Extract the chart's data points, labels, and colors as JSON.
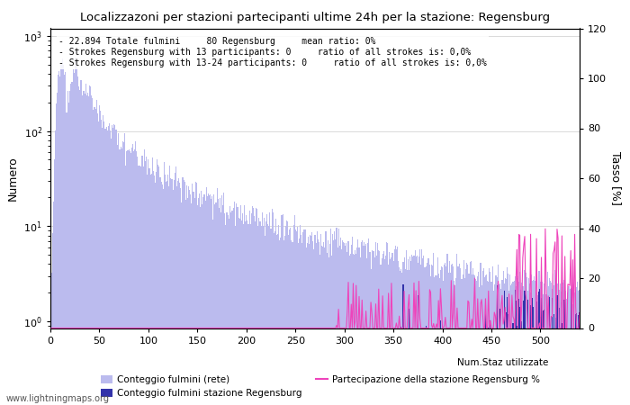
{
  "title": "Localizzazoni per stazioni partecipanti ultime 24h per la stazione: Regensburg",
  "ylabel_left": "Numero",
  "ylabel_right": "Tasso [%]",
  "annotation_line1": "- 22.894 Totale fulmini     80 Regensburg     mean ratio: 0%",
  "annotation_line2": "- Strokes Regensburg with 13 participants: 0     ratio of all strokes is: 0,0%",
  "annotation_line3": "- Strokes Regensburg with 13-24 participants: 0     ratio of all strokes is: 0,0%",
  "watermark": "www.lightningmaps.org",
  "legend1": "Conteggio fulmini (rete)",
  "legend2": "Conteggio fulmini stazione Regensburg",
  "legend3": "Partecipazione della stazione Regensburg %",
  "legend4": "Num.Staz utilizzate",
  "bar_color_light": "#bbbbee",
  "bar_color_dark": "#3333aa",
  "line_color": "#ee44bb",
  "background_color": "#ffffff",
  "ylim_right": [
    0,
    120
  ],
  "xlim": [
    0,
    540
  ],
  "xticks": [
    0,
    50,
    100,
    150,
    200,
    250,
    300,
    350,
    400,
    450,
    500
  ],
  "yticks_right": [
    0,
    20,
    40,
    60,
    80,
    100,
    120
  ],
  "yticks_left": [
    1,
    10,
    100,
    1000
  ],
  "ytick_labels_left": [
    "10^0",
    "10^1",
    "10^2",
    "10^3"
  ],
  "n_stations": 540
}
